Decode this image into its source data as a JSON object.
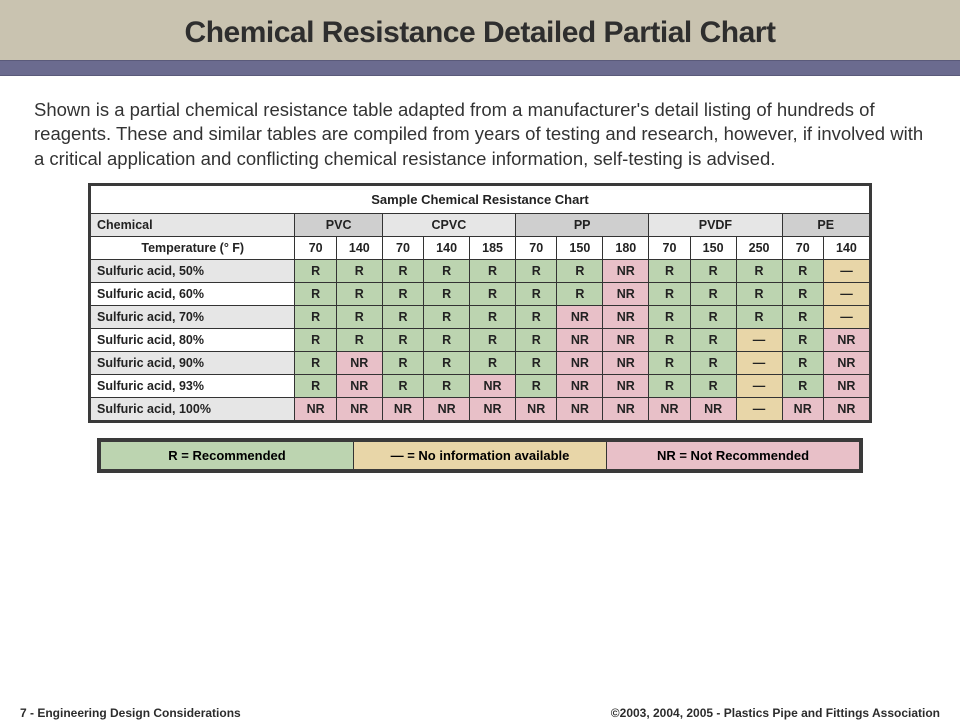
{
  "slide": {
    "title": "Chemical Resistance Detailed Partial Chart",
    "body": "Shown is a partial chemical resistance table adapted from a manufacturer's detail listing of hundreds of reagents. These and similar tables are compiled from years of testing and research, however, if involved with a critical application and conflicting chemical resistance information, self-testing is advised."
  },
  "table": {
    "caption": "Sample Chemical Resistance Chart",
    "chemical_label": "Chemical",
    "temp_label": "Temperature (° F)",
    "materials": [
      {
        "name": "PVC",
        "span": 2,
        "bg": "bg-gray1"
      },
      {
        "name": "CPVC",
        "span": 3,
        "bg": "bg-gray2"
      },
      {
        "name": "PP",
        "span": 3,
        "bg": "bg-gray1"
      },
      {
        "name": "PVDF",
        "span": 3,
        "bg": "bg-gray2"
      },
      {
        "name": "PE",
        "span": 2,
        "bg": "bg-gray1"
      }
    ],
    "temps": [
      "70",
      "140",
      "70",
      "140",
      "185",
      "70",
      "150",
      "180",
      "70",
      "150",
      "250",
      "70",
      "140"
    ],
    "rows": [
      {
        "label": "Sulfuric acid, 50%",
        "cells": [
          "R",
          "R",
          "R",
          "R",
          "R",
          "R",
          "R",
          "NR",
          "R",
          "R",
          "R",
          "R",
          "—"
        ]
      },
      {
        "label": "Sulfuric acid, 60%",
        "cells": [
          "R",
          "R",
          "R",
          "R",
          "R",
          "R",
          "R",
          "NR",
          "R",
          "R",
          "R",
          "R",
          "—"
        ]
      },
      {
        "label": "Sulfuric acid, 70%",
        "cells": [
          "R",
          "R",
          "R",
          "R",
          "R",
          "R",
          "NR",
          "NR",
          "R",
          "R",
          "R",
          "R",
          "—"
        ]
      },
      {
        "label": "Sulfuric acid, 80%",
        "cells": [
          "R",
          "R",
          "R",
          "R",
          "R",
          "R",
          "NR",
          "NR",
          "R",
          "R",
          "—",
          "R",
          "NR"
        ]
      },
      {
        "label": "Sulfuric acid, 90%",
        "cells": [
          "R",
          "NR",
          "R",
          "R",
          "R",
          "R",
          "NR",
          "NR",
          "R",
          "R",
          "—",
          "R",
          "NR"
        ]
      },
      {
        "label": "Sulfuric acid, 93%",
        "cells": [
          "R",
          "NR",
          "R",
          "R",
          "NR",
          "R",
          "NR",
          "NR",
          "R",
          "R",
          "—",
          "R",
          "NR"
        ]
      },
      {
        "label": "Sulfuric acid, 100%",
        "cells": [
          "NR",
          "NR",
          "NR",
          "NR",
          "NR",
          "NR",
          "NR",
          "NR",
          "NR",
          "NR",
          "—",
          "NR",
          "NR"
        ]
      }
    ],
    "row_label_alt": [
      "bg-gray2",
      "bg-white"
    ]
  },
  "legend": {
    "r": "R = Recommended",
    "dash": "—  = No information available",
    "nr": "NR = Not Recommended"
  },
  "footer": {
    "left": "7 - Engineering Design Considerations",
    "right": "©2003, 2004, 2005 - Plastics Pipe and Fittings Association"
  },
  "colors": {
    "title_band": "#c9c3b0",
    "accent_bar": "#6b6b8f",
    "R": "#bcd4b0",
    "NR": "#e8c0c8",
    "dash": "#e8d6a8",
    "gray1": "#cfcfcf",
    "gray2": "#e6e6e6"
  }
}
